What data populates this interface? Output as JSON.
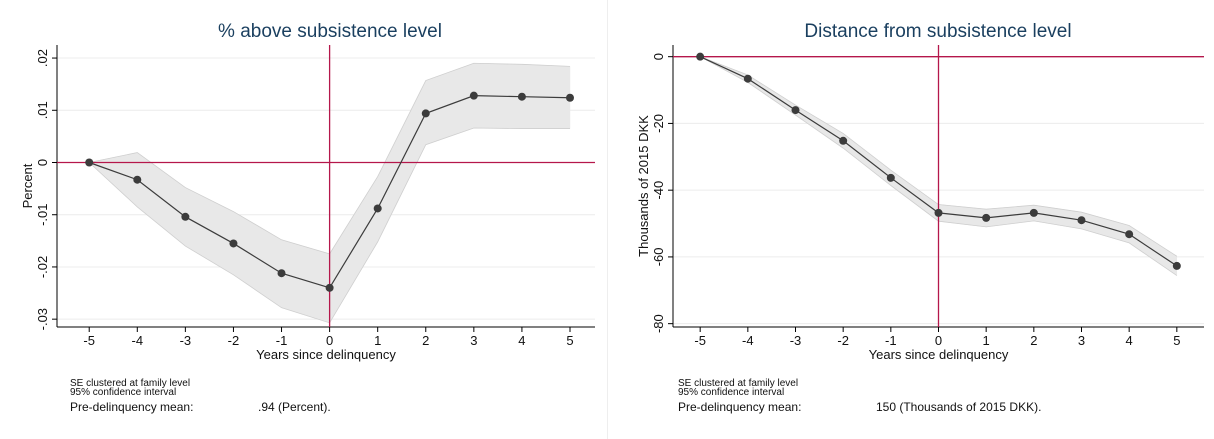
{
  "chart_data": [
    {
      "type": "line",
      "title": "% above subsistence level",
      "x_label": "Years since delinquency",
      "y_label": "Percent",
      "x": [
        -5,
        -4,
        -3,
        -2,
        -1,
        0,
        1,
        2,
        3,
        4,
        5
      ],
      "series": [
        {
          "color": "#3c3c3c",
          "values": [
            0,
            -0.0033,
            -0.0104,
            -0.0155,
            -0.0212,
            -0.024,
            -0.0088,
            0.0094,
            0.0128,
            0.0126,
            0.0124
          ],
          "ci_upper": [
            0,
            0.0019,
            -0.0048,
            -0.0094,
            -0.0148,
            -0.0175,
            -0.0027,
            0.0157,
            0.019,
            0.0188,
            0.0184
          ],
          "ci_lower": [
            0,
            -0.0085,
            -0.016,
            -0.0215,
            -0.0278,
            -0.0307,
            -0.0152,
            0.0034,
            0.0066,
            0.0065,
            0.0065
          ],
          "band_color": "#e8e8e8"
        }
      ],
      "xlim": [
        -5.67,
        5.52
      ],
      "xticks": [
        -5,
        -4,
        -3,
        -2,
        -1,
        0,
        1,
        2,
        3,
        4,
        5
      ],
      "ylim": [
        -0.0315,
        0.0225
      ],
      "yticks": [
        {
          "value": 0.02,
          "label": ".02"
        },
        {
          "value": 0.01,
          "label": ".01"
        },
        0,
        {
          "value": -0.01,
          "label": "-.01"
        },
        {
          "value": -0.02,
          "label": "-.02"
        },
        {
          "value": -0.03,
          "label": "-.03"
        }
      ],
      "grid": true,
      "hline": 0,
      "vline": 0,
      "ref_color": "#b5174b",
      "notes": [
        "SE clustered at family level",
        "95% confidence interval"
      ],
      "mean_label": "Pre-delinquency mean:",
      "mean_value": ".94 (Percent)."
    },
    {
      "type": "line",
      "title": "Distance from subsistence level",
      "x_label": "Years since delinquency",
      "y_label": "Thousands of 2015 DKK",
      "x": [
        -5,
        -4,
        -3,
        -2,
        -1,
        0,
        1,
        2,
        3,
        4,
        5
      ],
      "series": [
        {
          "color": "#3c3c3c",
          "values": [
            0,
            -6.6,
            -16,
            -25.2,
            -36.3,
            -46.8,
            -48.3,
            -46.8,
            -49,
            -53.2,
            -62.7
          ],
          "ci_upper": [
            0,
            -5.5,
            -14.5,
            -23,
            -34,
            -44.3,
            -45.7,
            -44.5,
            -46.6,
            -50.6,
            -59.8
          ],
          "ci_lower": [
            0,
            -7.7,
            -17.5,
            -27.4,
            -38.6,
            -49.3,
            -51,
            -49.2,
            -51.6,
            -55.8,
            -65.6
          ],
          "band_color": "#e8e8e8"
        }
      ],
      "xlim": [
        -5.57,
        5.57
      ],
      "xticks": [
        -5,
        -4,
        -3,
        -2,
        -1,
        0,
        1,
        2,
        3,
        4,
        5
      ],
      "ylim": [
        -81,
        3.5
      ],
      "yticks": [
        0,
        -20,
        -40,
        -60,
        -80
      ],
      "grid": true,
      "hline": 0,
      "vline": 0,
      "ref_color": "#b5174b",
      "notes": [
        "SE clustered at family level",
        "95% confidence interval"
      ],
      "mean_label": "Pre-delinquency mean:",
      "mean_value": "150 (Thousands of 2015 DKK)."
    }
  ]
}
